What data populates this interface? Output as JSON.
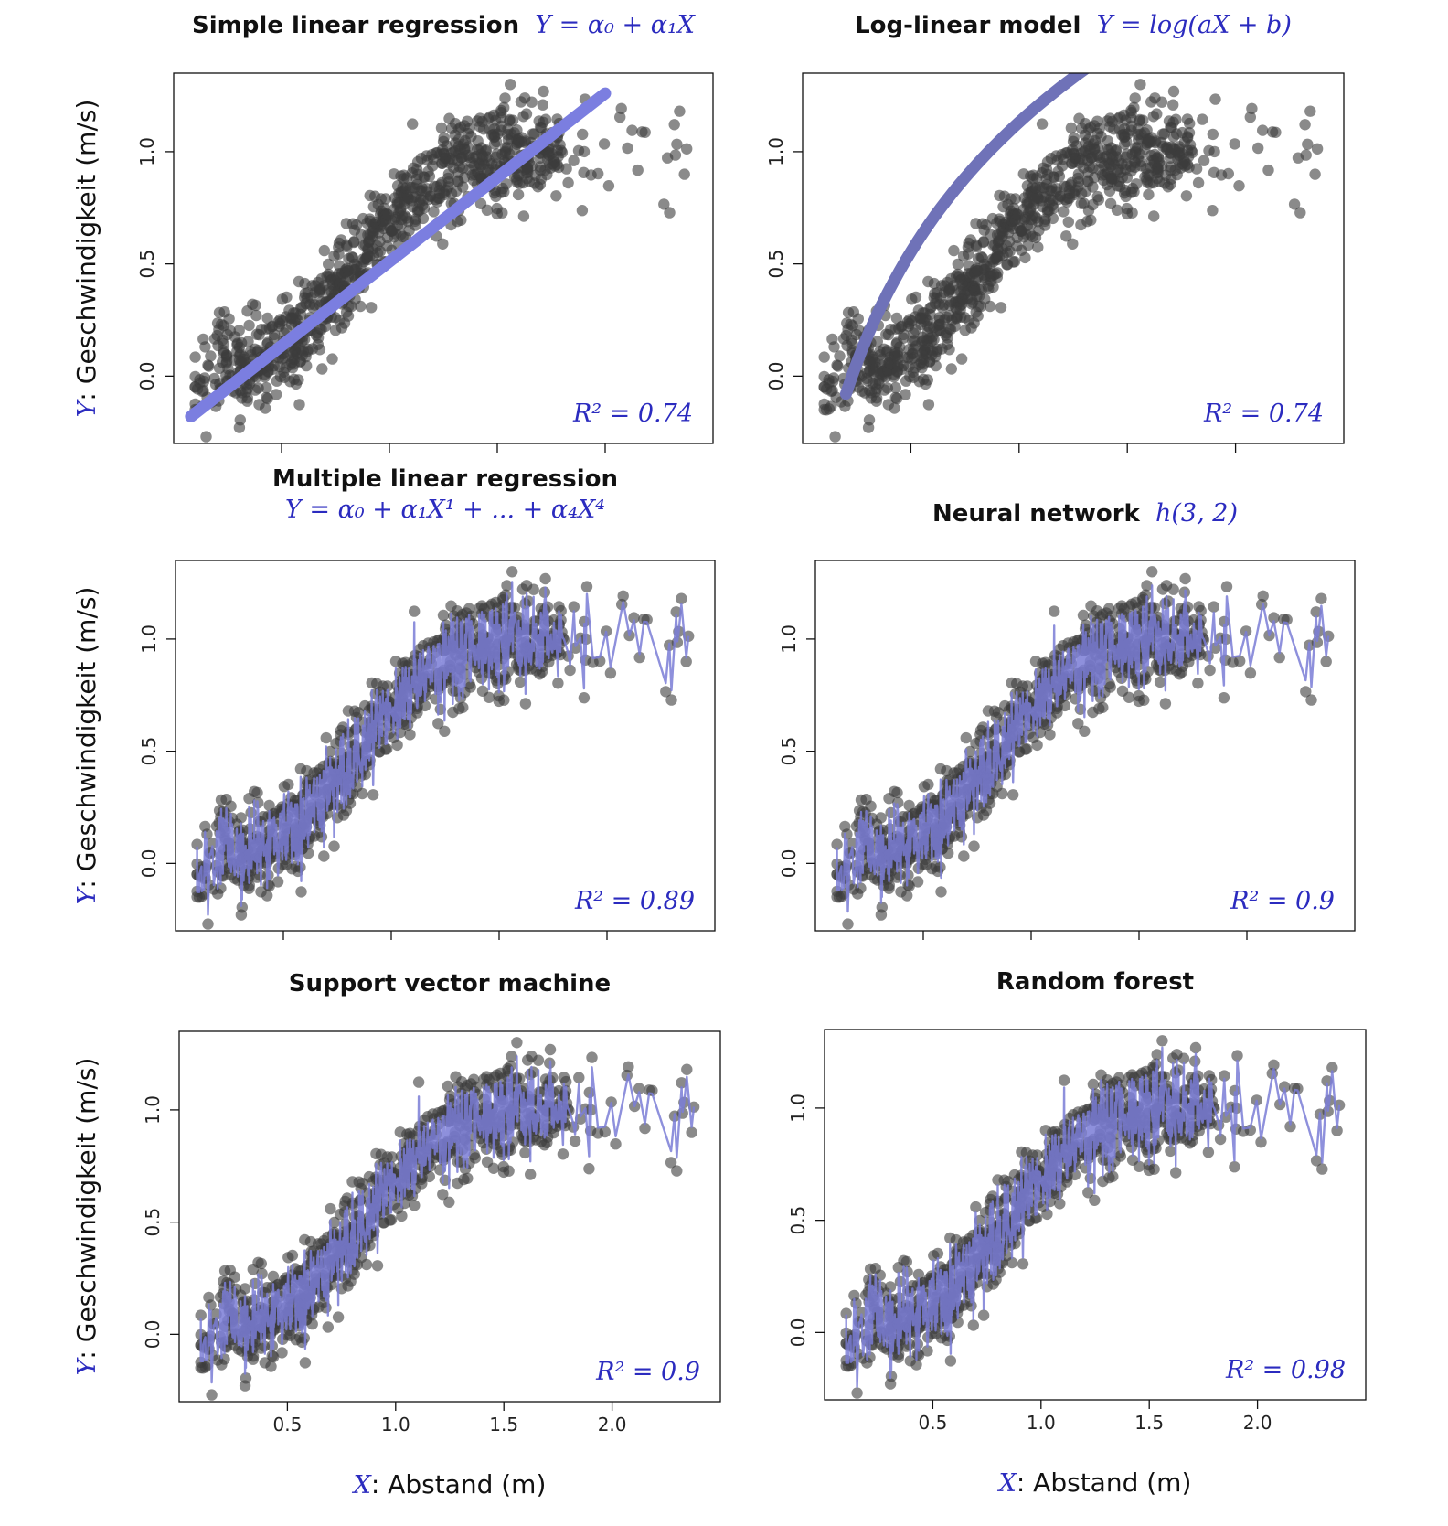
{
  "chart_data": [
    {
      "type": "scatter",
      "title": "Simple linear regression",
      "formula": "Y = α₀ + α₁X",
      "r2_label": "R² = 0.74",
      "fit_style": "line",
      "ylabel_var": "Y",
      "ylabel": "Geschwindigkeit (m/s)",
      "xlabel_var": "",
      "xlabel": "",
      "xlim": [
        0.0,
        2.5
      ],
      "ylim": [
        -0.3,
        1.35
      ],
      "xticks": [
        "0.5",
        "1.0",
        "1.5",
        "2.0"
      ],
      "yticks": [
        "0.0",
        "0.5",
        "1.0"
      ],
      "show_xtick_labels": false,
      "fit": {
        "intercept": -0.24,
        "slope": 0.75,
        "x_from": 0.08,
        "x_to": 2.0
      },
      "grid": false
    },
    {
      "type": "scatter",
      "title": "Log-linear model",
      "formula": "Y = log(aX + b)",
      "r2_label": "R² = 0.74",
      "fit_style": "log",
      "ylabel_var": "",
      "ylabel": "",
      "xlabel_var": "",
      "xlabel": "",
      "xlim": [
        0.0,
        2.5
      ],
      "ylim": [
        -0.3,
        1.35
      ],
      "xticks": [
        "0.5",
        "1.0",
        "1.5",
        "2.0"
      ],
      "yticks": [
        "0.0",
        "0.5",
        "1.0"
      ],
      "show_xtick_labels": false,
      "fit": {
        "a": 2.72,
        "b": 0.38,
        "x_from": 0.2,
        "x_to": 2.4
      },
      "grid": false
    },
    {
      "type": "scatter",
      "title": "Multiple linear regression",
      "formula": "Y = α₀ + α₁X¹ + ... + α₄X⁴",
      "r2_label": "R² = 0.89",
      "fit_style": "jagged",
      "ylabel_var": "Y",
      "ylabel": "Geschwindigkeit (m/s)",
      "xlabel_var": "",
      "xlabel": "",
      "xlim": [
        0.0,
        2.5
      ],
      "ylim": [
        -0.3,
        1.35
      ],
      "xticks": [
        "0.5",
        "1.0",
        "1.5",
        "2.0"
      ],
      "yticks": [
        "0.0",
        "0.5",
        "1.0"
      ],
      "show_xtick_labels": false,
      "fit": {
        "spread": 0.85
      },
      "grid": false
    },
    {
      "type": "scatter",
      "title": "Neural network",
      "formula": "h(3, 2)",
      "r2_label": "R² = 0.9",
      "fit_style": "jagged",
      "ylabel_var": "",
      "ylabel": "",
      "xlabel_var": "",
      "xlabel": "",
      "xlim": [
        0.0,
        2.5
      ],
      "ylim": [
        -0.3,
        1.35
      ],
      "xticks": [
        "0.5",
        "1.0",
        "1.5",
        "2.0"
      ],
      "yticks": [
        "0.0",
        "0.5",
        "1.0"
      ],
      "show_xtick_labels": false,
      "fit": {
        "spread": 0.8
      },
      "grid": false
    },
    {
      "type": "scatter",
      "title": "Support vector machine",
      "formula": "",
      "r2_label": "R² = 0.9",
      "fit_style": "jagged",
      "ylabel_var": "Y",
      "ylabel": "Geschwindigkeit (m/s)",
      "xlabel_var": "X",
      "xlabel": "Abstand (m)",
      "xlim": [
        0.0,
        2.5
      ],
      "ylim": [
        -0.3,
        1.35
      ],
      "xticks": [
        "0.5",
        "1.0",
        "1.5",
        "2.0"
      ],
      "yticks": [
        "0.0",
        "0.5",
        "1.0"
      ],
      "show_xtick_labels": true,
      "fit": {
        "spread": 0.8
      },
      "grid": false
    },
    {
      "type": "scatter",
      "title": "Random forest",
      "formula": "",
      "r2_label": "R² = 0.98",
      "fit_style": "jagged",
      "ylabel_var": "",
      "ylabel": "",
      "xlabel_var": "X",
      "xlabel": "Abstand (m)",
      "xlim": [
        0.0,
        2.5
      ],
      "ylim": [
        -0.3,
        1.35
      ],
      "xticks": [
        "0.5",
        "1.0",
        "1.5",
        "2.0"
      ],
      "yticks": [
        "0.0",
        "0.5",
        "1.0"
      ],
      "show_xtick_labels": true,
      "fit": {
        "spread": 0.9
      },
      "grid": false
    }
  ],
  "scatter_cloud": {
    "description_of_trend": "sigmoid",
    "trend": {
      "lower": -0.02,
      "upper": 1.02,
      "center_x": 0.85,
      "steepness": 5.2
    },
    "noise_sd": 0.11,
    "x_range": [
      0.1,
      2.4
    ],
    "n_points": 900
  },
  "colors": {
    "points": "#3c3c3c",
    "fit_line": "#7b7ee0",
    "fit_log": "#6f72b8",
    "fit_jagged": "#7a7cd6",
    "math_text": "#2b2bbf"
  }
}
